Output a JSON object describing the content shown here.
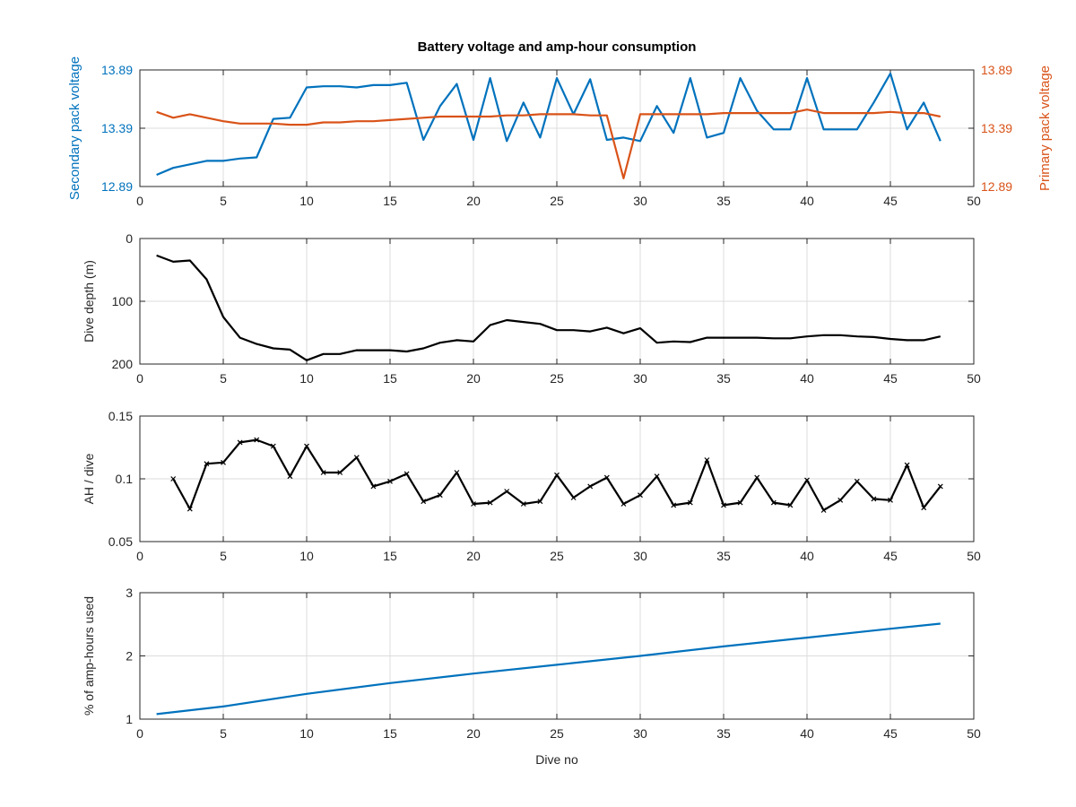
{
  "figure": {
    "title": "Battery voltage and amp-hour consumption",
    "colors": {
      "blue": "#0072BD",
      "orange": "#D95319",
      "black": "#000000",
      "grid": "#dcdcdc",
      "axis": "#262626"
    }
  },
  "chart_data": [
    {
      "type": "line",
      "title": "Battery voltage and amp-hour consumption",
      "xlabel": "",
      "xlim": [
        0,
        50
      ],
      "xticks": [
        "0",
        "5",
        "10",
        "15",
        "20",
        "25",
        "30",
        "35",
        "40",
        "45",
        "50"
      ],
      "ylabel": "Secondary pack voltage",
      "ylim": [
        12.89,
        13.89
      ],
      "yticks": [
        "12.89",
        "13.39",
        "13.89"
      ],
      "ylabel_right": "Primary pack voltage",
      "ylim_right": [
        12.89,
        13.89
      ],
      "yticks_right": [
        "12.89",
        "13.39",
        "13.89"
      ],
      "grid": true,
      "x": [
        1,
        2,
        3,
        4,
        5,
        6,
        7,
        8,
        9,
        10,
        11,
        12,
        13,
        14,
        15,
        16,
        17,
        18,
        19,
        20,
        21,
        22,
        23,
        24,
        25,
        26,
        27,
        28,
        29,
        30,
        31,
        32,
        33,
        34,
        35,
        36,
        37,
        38,
        39,
        40,
        41,
        42,
        43,
        44,
        45,
        46,
        47,
        48
      ],
      "series": [
        {
          "name": "",
          "axis": "left",
          "color": "#0072BD",
          "values": [
            12.99,
            13.05,
            13.08,
            13.11,
            13.11,
            13.13,
            13.14,
            13.47,
            13.48,
            13.74,
            13.75,
            13.75,
            13.74,
            13.76,
            13.76,
            13.78,
            13.29,
            13.58,
            13.77,
            13.29,
            13.82,
            13.28,
            13.61,
            13.31,
            13.82,
            13.51,
            13.81,
            13.29,
            13.31,
            13.28,
            13.58,
            13.35,
            13.82,
            13.31,
            13.35,
            13.82,
            13.54,
            13.38,
            13.38,
            13.82,
            13.38,
            13.38,
            13.38,
            13.61,
            13.86,
            13.38,
            13.61,
            13.28
          ]
        },
        {
          "name": "",
          "axis": "right",
          "color": "#D95319",
          "values": [
            13.53,
            13.48,
            13.51,
            13.48,
            13.45,
            13.43,
            13.43,
            13.43,
            13.42,
            13.42,
            13.44,
            13.44,
            13.45,
            13.45,
            13.46,
            13.47,
            13.48,
            13.49,
            13.49,
            13.49,
            13.49,
            13.5,
            13.5,
            13.51,
            13.51,
            13.51,
            13.5,
            13.5,
            12.96,
            13.51,
            13.51,
            13.51,
            13.51,
            13.51,
            13.52,
            13.52,
            13.52,
            13.52,
            13.52,
            13.55,
            13.52,
            13.52,
            13.52,
            13.52,
            13.53,
            13.52,
            13.52,
            13.49
          ]
        }
      ]
    },
    {
      "type": "line",
      "title": "",
      "xlabel": "",
      "xlim": [
        0,
        50
      ],
      "xticks": [
        "0",
        "5",
        "10",
        "15",
        "20",
        "25",
        "30",
        "35",
        "40",
        "45",
        "50"
      ],
      "ylabel": "Dive depth (m)",
      "ylim": [
        0,
        200
      ],
      "y_reversed": true,
      "yticks": [
        "0",
        "100",
        "200"
      ],
      "grid": true,
      "x": [
        1,
        2,
        3,
        4,
        5,
        6,
        7,
        8,
        9,
        10,
        11,
        12,
        13,
        14,
        15,
        16,
        17,
        18,
        19,
        20,
        21,
        22,
        23,
        24,
        25,
        26,
        27,
        28,
        29,
        30,
        31,
        32,
        33,
        34,
        35,
        36,
        37,
        38,
        39,
        40,
        41,
        42,
        43,
        44,
        45,
        46,
        47,
        48
      ],
      "series": [
        {
          "name": "",
          "color": "#000000",
          "values": [
            27,
            37,
            35,
            65,
            125,
            158,
            168,
            175,
            177,
            194,
            184,
            184,
            178,
            178,
            178,
            180,
            175,
            166,
            162,
            164,
            138,
            130,
            133,
            136,
            146,
            146,
            148,
            142,
            151,
            143,
            166,
            164,
            165,
            158,
            158,
            158,
            158,
            159,
            159,
            156,
            154,
            154,
            156,
            157,
            160,
            162,
            162,
            156
          ]
        }
      ]
    },
    {
      "type": "line",
      "title": "",
      "xlabel": "",
      "xlim": [
        0,
        50
      ],
      "xticks": [
        "0",
        "5",
        "10",
        "15",
        "20",
        "25",
        "30",
        "35",
        "40",
        "45",
        "50"
      ],
      "ylabel": "AH / dive",
      "ylim": [
        0.05,
        0.15
      ],
      "yticks": [
        "0.05",
        "0.1",
        "0.15"
      ],
      "grid": true,
      "x": [
        2,
        3,
        4,
        5,
        6,
        7,
        8,
        9,
        10,
        11,
        12,
        13,
        14,
        15,
        16,
        17,
        18,
        19,
        20,
        21,
        22,
        23,
        24,
        25,
        26,
        27,
        28,
        29,
        30,
        31,
        32,
        33,
        34,
        35,
        36,
        37,
        38,
        39,
        40,
        41,
        42,
        43,
        44,
        45,
        46,
        47,
        48
      ],
      "series": [
        {
          "name": "",
          "color": "#000000",
          "marker": "x",
          "values": [
            0.1,
            0.076,
            0.112,
            0.113,
            0.129,
            0.131,
            0.126,
            0.102,
            0.126,
            0.105,
            0.105,
            0.117,
            0.094,
            0.098,
            0.104,
            0.082,
            0.087,
            0.105,
            0.08,
            0.081,
            0.09,
            0.08,
            0.082,
            0.103,
            0.085,
            0.094,
            0.101,
            0.08,
            0.087,
            0.102,
            0.079,
            0.081,
            0.115,
            0.079,
            0.081,
            0.101,
            0.081,
            0.079,
            0.099,
            0.075,
            0.083,
            0.098,
            0.084,
            0.083,
            0.111,
            0.077,
            0.094
          ]
        }
      ]
    },
    {
      "type": "line",
      "title": "",
      "xlabel": "Dive no",
      "xlim": [
        0,
        50
      ],
      "xticks": [
        "0",
        "5",
        "10",
        "15",
        "20",
        "25",
        "30",
        "35",
        "40",
        "45",
        "50"
      ],
      "ylabel": "% of amp-hours used",
      "ylim": [
        1,
        3
      ],
      "yticks": [
        "1",
        "2",
        "3"
      ],
      "grid": true,
      "x": [
        1,
        5,
        10,
        15,
        20,
        25,
        30,
        35,
        40,
        45,
        48
      ],
      "series": [
        {
          "name": "",
          "color": "#0072BD",
          "values": [
            1.08,
            1.2,
            1.4,
            1.57,
            1.72,
            1.86,
            2.0,
            2.15,
            2.29,
            2.43,
            2.51
          ]
        }
      ]
    }
  ]
}
